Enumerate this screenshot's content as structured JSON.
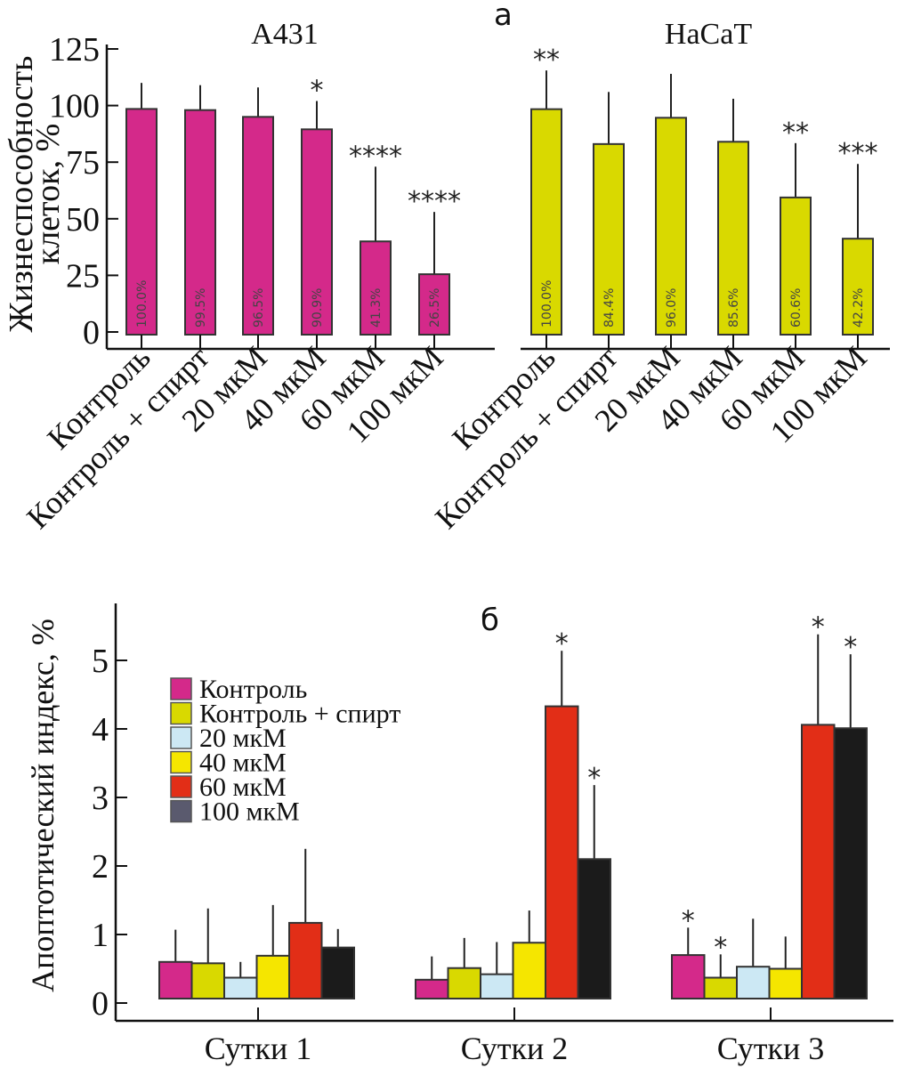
{
  "chart_data": [
    {
      "id": "a",
      "panel_label": "а",
      "type": "bar",
      "ylabel_line1": "Жизнеспособность",
      "ylabel_line2": "клеток, %",
      "ylim": [
        0,
        125
      ],
      "yticks": [
        0,
        25,
        50,
        75,
        100,
        125
      ],
      "grid": false,
      "groups": [
        {
          "title": "A431",
          "color": "#d4298a",
          "categories": [
            "Контроль",
            "Контроль + спирт",
            "20 мкМ",
            "40 мкМ",
            "60 мкМ",
            "100 мкМ"
          ],
          "values": [
            98.5,
            98,
            95,
            89.5,
            40,
            25.5
          ],
          "error_upper": [
            110,
            109,
            108,
            102,
            73,
            53
          ],
          "bar_labels": [
            "100.0%",
            "99.5%",
            "96.5%",
            "90.9%",
            "41.3%",
            "26.5%"
          ],
          "significance": [
            "",
            "",
            "",
            "*",
            "****",
            "****"
          ]
        },
        {
          "title": "HaCaT",
          "color": "#d9d900",
          "categories": [
            "Контроль",
            "Контроль + спирт",
            "20 мкМ",
            "40 мкМ",
            "60 мкМ",
            "100 мкМ"
          ],
          "values": [
            98.4,
            83,
            94.6,
            84,
            59.4,
            41.2
          ],
          "error_upper": [
            115.5,
            106,
            114,
            103,
            83.4,
            74.2
          ],
          "bar_labels": [
            "100.0%",
            "84.4%",
            "96.0%",
            "85.6%",
            "60.6%",
            "42.2%"
          ],
          "significance": [
            "**",
            "",
            "",
            "",
            "**",
            "***"
          ]
        }
      ]
    },
    {
      "id": "b",
      "panel_label": "б",
      "type": "bar",
      "ylabel": "Апоптотический индекс, %",
      "ylim": [
        0,
        5.8
      ],
      "yticks": [
        0,
        1,
        2,
        3,
        4,
        5
      ],
      "grid": false,
      "legend_position": "top-left",
      "categories": [
        "Сутки 1",
        "Сутки 2",
        "Сутки 3"
      ],
      "series": [
        {
          "name": "Контроль",
          "color": "#d4298a",
          "values": [
            0.6,
            0.34,
            0.7
          ],
          "error_upper": [
            1.07,
            0.68,
            1.1
          ],
          "significance": [
            "",
            "",
            "*"
          ]
        },
        {
          "name": "Контроль + спирт",
          "color": "#d9d900",
          "values": [
            0.58,
            0.51,
            0.37
          ],
          "error_upper": [
            1.38,
            0.95,
            0.71
          ],
          "significance": [
            "",
            "",
            "*"
          ]
        },
        {
          "name": "20 мкМ",
          "color": "#cce8f4",
          "values": [
            0.37,
            0.42,
            0.53
          ],
          "error_upper": [
            0.6,
            0.89,
            1.23
          ],
          "significance": [
            "",
            "",
            ""
          ]
        },
        {
          "name": "40 мкМ",
          "color": "#f5e600",
          "values": [
            0.69,
            0.88,
            0.5
          ],
          "error_upper": [
            1.43,
            1.35,
            0.97
          ],
          "significance": [
            "",
            "",
            ""
          ]
        },
        {
          "name": "60 мкМ",
          "color": "#e22e17",
          "values": [
            1.17,
            4.33,
            4.06
          ],
          "error_upper": [
            2.25,
            5.14,
            5.38
          ],
          "significance": [
            "",
            "*",
            "*"
          ]
        },
        {
          "name": "100 мкМ",
          "color": "#1b1b1b",
          "legend_color": "#5a5a6e",
          "values": [
            0.81,
            2.1,
            4.01
          ],
          "error_upper": [
            1.08,
            3.18,
            5.09
          ],
          "significance": [
            "",
            "*",
            "*"
          ]
        }
      ]
    }
  ]
}
